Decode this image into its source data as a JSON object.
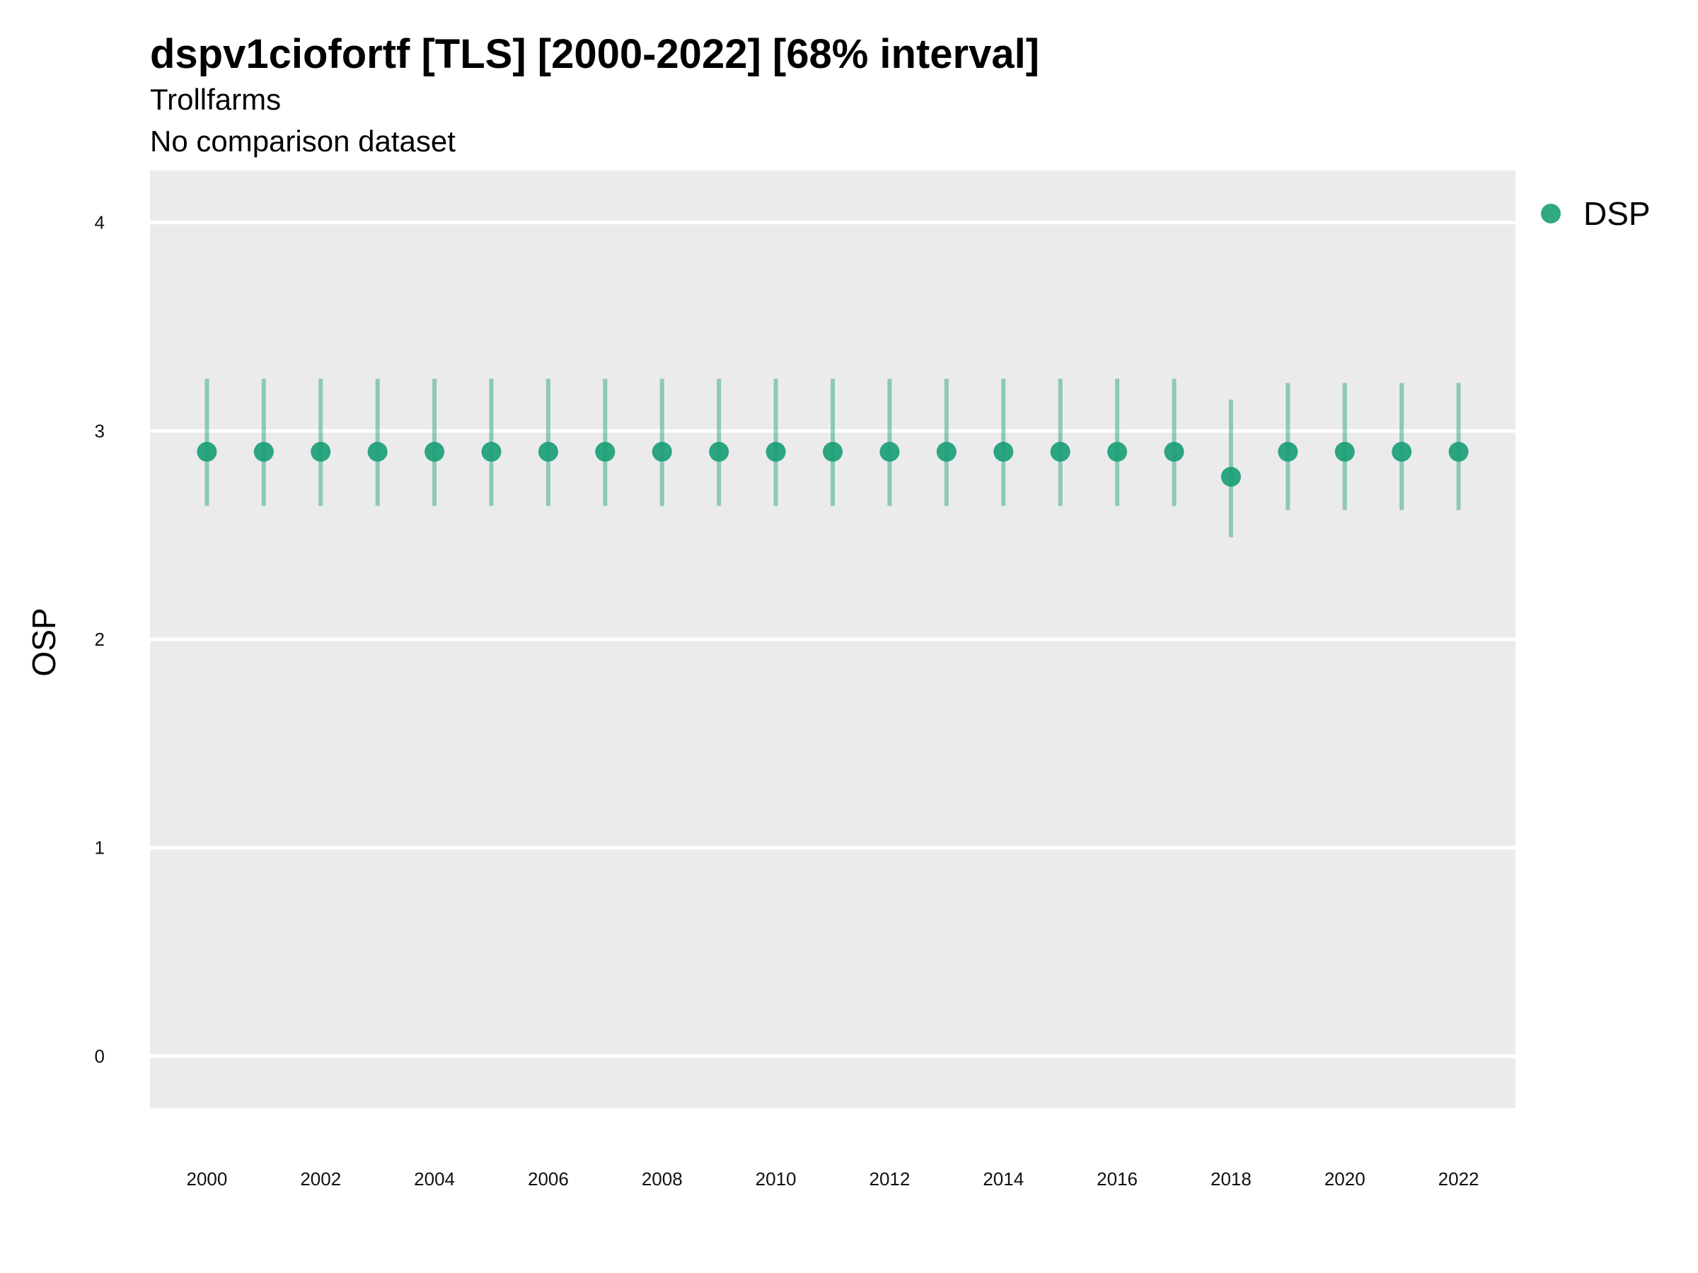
{
  "chart_data": {
    "type": "scatter",
    "title": "dspv1ciofortf [TLS] [2000-2022] [68% interval]",
    "subtitle": "Trollfarms",
    "subtitle2": "No comparison dataset",
    "xlabel": "",
    "ylabel": "OSP",
    "ylim": [
      -0.25,
      4.25
    ],
    "xlim": [
      1999,
      2023
    ],
    "y_ticks": [
      0,
      1,
      2,
      3,
      4
    ],
    "x_ticks": [
      2000,
      2002,
      2004,
      2006,
      2008,
      2010,
      2012,
      2014,
      2016,
      2018,
      2020,
      2022
    ],
    "grid": true,
    "legend_position": "top-right",
    "series": [
      {
        "name": "DSP",
        "color": "#1b9e77",
        "x": [
          2000,
          2001,
          2002,
          2003,
          2004,
          2005,
          2006,
          2007,
          2008,
          2009,
          2010,
          2011,
          2012,
          2013,
          2014,
          2015,
          2016,
          2017,
          2018,
          2019,
          2020,
          2021,
          2022
        ],
        "y": [
          2.9,
          2.9,
          2.9,
          2.9,
          2.9,
          2.9,
          2.9,
          2.9,
          2.9,
          2.9,
          2.9,
          2.9,
          2.9,
          2.9,
          2.9,
          2.9,
          2.9,
          2.9,
          2.78,
          2.9,
          2.9,
          2.9,
          2.9
        ],
        "lower": [
          2.64,
          2.64,
          2.64,
          2.64,
          2.64,
          2.64,
          2.64,
          2.64,
          2.64,
          2.64,
          2.64,
          2.64,
          2.64,
          2.64,
          2.64,
          2.64,
          2.64,
          2.64,
          2.49,
          2.62,
          2.62,
          2.62,
          2.62
        ],
        "upper": [
          3.25,
          3.25,
          3.25,
          3.25,
          3.25,
          3.25,
          3.25,
          3.25,
          3.25,
          3.25,
          3.25,
          3.25,
          3.25,
          3.25,
          3.25,
          3.25,
          3.25,
          3.25,
          3.15,
          3.23,
          3.23,
          3.23,
          3.23
        ]
      }
    ]
  }
}
